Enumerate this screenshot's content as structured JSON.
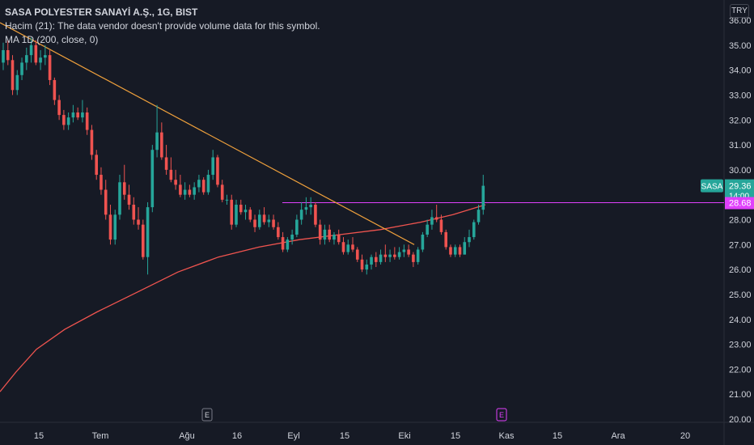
{
  "header": {
    "symbol_title": "SASA POLYESTER SANAYİ A.Ş., 1G, BIST",
    "volume_note": "Hacim (21): The data vendor doesn't provide volume data for this symbol.",
    "ma_label": "MA  1D (200, close, 0)"
  },
  "currency": "TRY",
  "colors": {
    "background": "#161a25",
    "up": "#26a69a",
    "down": "#ef5350",
    "ma_line": "#f0544f",
    "trendline": "#f0a13c",
    "horizontal_line": "#e040fb",
    "text": "#d1d4dc"
  },
  "chart_data": {
    "type": "candlestick",
    "y_axis": {
      "min": 20,
      "max": 36,
      "ticks": [
        "20.00",
        "21.00",
        "22.00",
        "23.00",
        "24.00",
        "25.00",
        "26.00",
        "27.00",
        "28.00",
        "29.00",
        "30.00",
        "31.00",
        "32.00",
        "33.00",
        "34.00",
        "35.00",
        "36.00"
      ],
      "position": "right"
    },
    "x_axis": {
      "ticks": [
        "15",
        "Tem",
        "Ağu",
        "16",
        "Eyl",
        "15",
        "Eki",
        "15",
        "Kas",
        "15",
        "Ara",
        "20"
      ]
    },
    "events": [
      "E",
      "E"
    ],
    "price_labels": [
      {
        "text": "SASA",
        "value": 29.36,
        "color": "#26a69a"
      },
      {
        "text": "29.36",
        "value": 29.36,
        "color": "#26a69a"
      },
      {
        "text": "14:00",
        "value": 29.36,
        "color": "#26a69a"
      },
      {
        "text": "28.68",
        "value": 28.68,
        "color": "#e040fb"
      }
    ],
    "horizontal_level": 28.68,
    "candles": [
      {
        "o": 34.3,
        "h": 35.1,
        "l": 34.0,
        "c": 34.8
      },
      {
        "o": 34.8,
        "h": 35.2,
        "l": 34.2,
        "c": 34.4
      },
      {
        "o": 34.4,
        "h": 34.6,
        "l": 33.0,
        "c": 33.2
      },
      {
        "o": 33.2,
        "h": 34.0,
        "l": 33.0,
        "c": 33.8
      },
      {
        "o": 33.8,
        "h": 34.5,
        "l": 33.6,
        "c": 34.3
      },
      {
        "o": 34.3,
        "h": 34.9,
        "l": 34.0,
        "c": 34.6
      },
      {
        "o": 34.6,
        "h": 35.3,
        "l": 34.3,
        "c": 35.0
      },
      {
        "o": 35.0,
        "h": 35.2,
        "l": 34.2,
        "c": 34.3
      },
      {
        "o": 34.3,
        "h": 34.8,
        "l": 34.0,
        "c": 34.5
      },
      {
        "o": 34.5,
        "h": 35.0,
        "l": 34.2,
        "c": 34.6
      },
      {
        "o": 34.6,
        "h": 34.8,
        "l": 33.4,
        "c": 33.6
      },
      {
        "o": 33.6,
        "h": 33.7,
        "l": 32.6,
        "c": 32.8
      },
      {
        "o": 32.8,
        "h": 33.0,
        "l": 32.0,
        "c": 32.2
      },
      {
        "o": 32.2,
        "h": 32.4,
        "l": 31.6,
        "c": 31.8
      },
      {
        "o": 31.8,
        "h": 32.3,
        "l": 31.6,
        "c": 32.1
      },
      {
        "o": 32.1,
        "h": 32.6,
        "l": 31.9,
        "c": 32.3
      },
      {
        "o": 32.3,
        "h": 32.5,
        "l": 32.0,
        "c": 32.1
      },
      {
        "o": 32.1,
        "h": 32.8,
        "l": 31.9,
        "c": 32.3
      },
      {
        "o": 32.3,
        "h": 32.5,
        "l": 31.4,
        "c": 31.6
      },
      {
        "o": 31.6,
        "h": 31.8,
        "l": 30.4,
        "c": 30.6
      },
      {
        "o": 30.6,
        "h": 30.8,
        "l": 29.6,
        "c": 29.8
      },
      {
        "o": 29.8,
        "h": 30.1,
        "l": 29.0,
        "c": 29.2
      },
      {
        "o": 29.2,
        "h": 29.6,
        "l": 28.0,
        "c": 28.2
      },
      {
        "o": 28.2,
        "h": 28.6,
        "l": 27.0,
        "c": 27.2
      },
      {
        "o": 27.2,
        "h": 28.4,
        "l": 27.0,
        "c": 28.2
      },
      {
        "o": 28.2,
        "h": 29.8,
        "l": 28.0,
        "c": 29.5
      },
      {
        "o": 29.5,
        "h": 30.2,
        "l": 28.8,
        "c": 29.0
      },
      {
        "o": 29.0,
        "h": 29.4,
        "l": 28.4,
        "c": 28.6
      },
      {
        "o": 28.6,
        "h": 28.9,
        "l": 27.8,
        "c": 28.0
      },
      {
        "o": 28.0,
        "h": 28.5,
        "l": 27.6,
        "c": 27.8
      },
      {
        "o": 27.8,
        "h": 28.0,
        "l": 26.4,
        "c": 26.5
      },
      {
        "o": 26.5,
        "h": 28.7,
        "l": 25.8,
        "c": 28.5
      },
      {
        "o": 28.5,
        "h": 31.0,
        "l": 28.3,
        "c": 30.8
      },
      {
        "o": 30.8,
        "h": 32.6,
        "l": 30.5,
        "c": 31.5
      },
      {
        "o": 31.5,
        "h": 31.9,
        "l": 30.4,
        "c": 30.5
      },
      {
        "o": 30.5,
        "h": 31.0,
        "l": 29.8,
        "c": 30.0
      },
      {
        "o": 30.0,
        "h": 30.5,
        "l": 29.5,
        "c": 29.6
      },
      {
        "o": 29.6,
        "h": 30.0,
        "l": 29.2,
        "c": 29.4
      },
      {
        "o": 29.4,
        "h": 29.8,
        "l": 28.9,
        "c": 29.0
      },
      {
        "o": 29.0,
        "h": 29.5,
        "l": 28.8,
        "c": 29.2
      },
      {
        "o": 29.2,
        "h": 29.4,
        "l": 28.9,
        "c": 29.0
      },
      {
        "o": 29.0,
        "h": 29.5,
        "l": 28.8,
        "c": 29.3
      },
      {
        "o": 29.3,
        "h": 29.8,
        "l": 29.1,
        "c": 29.6
      },
      {
        "o": 29.6,
        "h": 29.7,
        "l": 29.0,
        "c": 29.1
      },
      {
        "o": 29.1,
        "h": 30.0,
        "l": 29.0,
        "c": 29.8
      },
      {
        "o": 29.8,
        "h": 30.8,
        "l": 29.6,
        "c": 30.5
      },
      {
        "o": 30.5,
        "h": 30.6,
        "l": 29.3,
        "c": 29.4
      },
      {
        "o": 29.4,
        "h": 29.6,
        "l": 28.7,
        "c": 28.8
      },
      {
        "o": 28.8,
        "h": 29.0,
        "l": 28.6,
        "c": 28.8
      },
      {
        "o": 28.8,
        "h": 29.0,
        "l": 27.6,
        "c": 27.8
      },
      {
        "o": 27.8,
        "h": 28.8,
        "l": 27.7,
        "c": 28.6
      },
      {
        "o": 28.6,
        "h": 28.8,
        "l": 28.2,
        "c": 28.3
      },
      {
        "o": 28.3,
        "h": 28.6,
        "l": 28.0,
        "c": 28.4
      },
      {
        "o": 28.4,
        "h": 28.5,
        "l": 27.9,
        "c": 28.0
      },
      {
        "o": 28.0,
        "h": 28.2,
        "l": 27.5,
        "c": 27.7
      },
      {
        "o": 27.7,
        "h": 28.4,
        "l": 27.6,
        "c": 28.2
      },
      {
        "o": 28.2,
        "h": 28.5,
        "l": 27.8,
        "c": 27.9
      },
      {
        "o": 27.9,
        "h": 28.2,
        "l": 27.7,
        "c": 28.0
      },
      {
        "o": 28.0,
        "h": 28.2,
        "l": 27.6,
        "c": 27.7
      },
      {
        "o": 27.7,
        "h": 27.9,
        "l": 27.2,
        "c": 27.3
      },
      {
        "o": 27.3,
        "h": 27.5,
        "l": 26.7,
        "c": 26.8
      },
      {
        "o": 26.8,
        "h": 27.3,
        "l": 26.7,
        "c": 27.2
      },
      {
        "o": 27.2,
        "h": 27.6,
        "l": 27.0,
        "c": 27.4
      },
      {
        "o": 27.4,
        "h": 28.2,
        "l": 27.3,
        "c": 28.0
      },
      {
        "o": 28.0,
        "h": 28.7,
        "l": 27.8,
        "c": 28.4
      },
      {
        "o": 28.4,
        "h": 28.9,
        "l": 28.2,
        "c": 28.5
      },
      {
        "o": 28.5,
        "h": 28.9,
        "l": 28.2,
        "c": 28.6
      },
      {
        "o": 28.6,
        "h": 28.7,
        "l": 27.7,
        "c": 27.8
      },
      {
        "o": 27.8,
        "h": 28.0,
        "l": 27.0,
        "c": 27.2
      },
      {
        "o": 27.2,
        "h": 27.8,
        "l": 27.0,
        "c": 27.6
      },
      {
        "o": 27.6,
        "h": 27.8,
        "l": 27.1,
        "c": 27.2
      },
      {
        "o": 27.2,
        "h": 27.5,
        "l": 27.0,
        "c": 27.4
      },
      {
        "o": 27.4,
        "h": 27.6,
        "l": 27.0,
        "c": 27.1
      },
      {
        "o": 27.1,
        "h": 27.3,
        "l": 26.6,
        "c": 26.7
      },
      {
        "o": 26.7,
        "h": 27.2,
        "l": 26.6,
        "c": 27.0
      },
      {
        "o": 27.0,
        "h": 27.3,
        "l": 26.7,
        "c": 26.8
      },
      {
        "o": 26.8,
        "h": 26.9,
        "l": 26.3,
        "c": 26.4
      },
      {
        "o": 26.4,
        "h": 26.6,
        "l": 25.9,
        "c": 26.0
      },
      {
        "o": 26.0,
        "h": 26.4,
        "l": 25.8,
        "c": 26.2
      },
      {
        "o": 26.2,
        "h": 26.6,
        "l": 26.0,
        "c": 26.5
      },
      {
        "o": 26.5,
        "h": 26.7,
        "l": 26.1,
        "c": 26.3
      },
      {
        "o": 26.3,
        "h": 26.8,
        "l": 26.2,
        "c": 26.6
      },
      {
        "o": 26.6,
        "h": 27.0,
        "l": 26.3,
        "c": 26.5
      },
      {
        "o": 26.5,
        "h": 26.8,
        "l": 26.3,
        "c": 26.6
      },
      {
        "o": 26.6,
        "h": 26.9,
        "l": 26.4,
        "c": 26.5
      },
      {
        "o": 26.5,
        "h": 26.9,
        "l": 26.4,
        "c": 26.7
      },
      {
        "o": 26.7,
        "h": 27.0,
        "l": 26.5,
        "c": 26.8
      },
      {
        "o": 26.8,
        "h": 27.0,
        "l": 26.5,
        "c": 26.6
      },
      {
        "o": 26.6,
        "h": 26.7,
        "l": 26.1,
        "c": 26.3
      },
      {
        "o": 26.3,
        "h": 26.9,
        "l": 26.2,
        "c": 26.8
      },
      {
        "o": 26.8,
        "h": 27.5,
        "l": 26.7,
        "c": 27.4
      },
      {
        "o": 27.4,
        "h": 28.0,
        "l": 27.3,
        "c": 27.8
      },
      {
        "o": 27.8,
        "h": 28.4,
        "l": 27.6,
        "c": 28.1
      },
      {
        "o": 28.1,
        "h": 28.6,
        "l": 27.9,
        "c": 28.0
      },
      {
        "o": 28.0,
        "h": 28.2,
        "l": 27.4,
        "c": 27.5
      },
      {
        "o": 27.5,
        "h": 27.6,
        "l": 26.8,
        "c": 26.9
      },
      {
        "o": 26.9,
        "h": 27.0,
        "l": 26.5,
        "c": 26.6
      },
      {
        "o": 26.6,
        "h": 27.0,
        "l": 26.5,
        "c": 26.9
      },
      {
        "o": 26.9,
        "h": 27.0,
        "l": 26.5,
        "c": 26.6
      },
      {
        "o": 26.6,
        "h": 27.3,
        "l": 26.6,
        "c": 27.1
      },
      {
        "o": 27.1,
        "h": 27.6,
        "l": 26.9,
        "c": 27.3
      },
      {
        "o": 27.3,
        "h": 28.0,
        "l": 27.2,
        "c": 27.9
      },
      {
        "o": 27.9,
        "h": 28.6,
        "l": 27.8,
        "c": 28.4
      },
      {
        "o": 28.4,
        "h": 29.8,
        "l": 28.2,
        "c": 29.36
      }
    ],
    "ma_line": [
      [
        0,
        21.1
      ],
      [
        20,
        21.9
      ],
      [
        45,
        22.8
      ],
      [
        80,
        23.6
      ],
      [
        120,
        24.3
      ],
      [
        170,
        25.1
      ],
      [
        220,
        25.9
      ],
      [
        270,
        26.5
      ],
      [
        320,
        26.9
      ],
      [
        370,
        27.2
      ],
      [
        420,
        27.4
      ],
      [
        470,
        27.6
      ],
      [
        520,
        27.9
      ],
      [
        560,
        28.2
      ],
      [
        600,
        28.6
      ]
    ],
    "trendline": {
      "x1": 0,
      "y1": 35.9,
      "x2": 512,
      "y2": 27.0
    }
  }
}
